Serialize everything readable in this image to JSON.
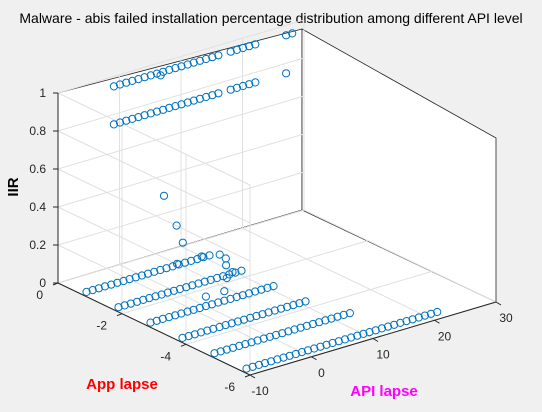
{
  "chart_data": {
    "type": "scatter",
    "title": "Malware - abis failed installation percentage distribution among different API level",
    "xlabel": "API lapse",
    "ylabel": "App lapse",
    "zlabel": "IIR",
    "xlim": [
      -10,
      30
    ],
    "ylim": [
      -6,
      0
    ],
    "zlim": [
      0,
      1
    ],
    "xticks": [
      "-10",
      "0",
      "10",
      "20",
      "30"
    ],
    "yticks": [
      "-6",
      "-4",
      "-2",
      "0"
    ],
    "zticks": [
      "0",
      "0.2",
      "0.4",
      "0.6",
      "0.8",
      "1"
    ],
    "grid": true,
    "colors": {
      "marker": "#0072bd",
      "xlabel": "#ff00ff",
      "ylabel": "#ff0000",
      "zlabel": "#000000",
      "background": "#f0f0f0",
      "plot_area": "#ffffff"
    },
    "series": [
      {
        "points": [
          {
            "x": -9,
            "y": -5.7,
            "z": 0
          },
          {
            "x": -8,
            "y": -5.7,
            "z": 0
          },
          {
            "x": -7,
            "y": -5.7,
            "z": 0
          },
          {
            "x": -6,
            "y": -5.7,
            "z": 0
          },
          {
            "x": -5,
            "y": -5.7,
            "z": 0
          },
          {
            "x": -4,
            "y": -5.7,
            "z": 0
          },
          {
            "x": -3,
            "y": -5.7,
            "z": 0
          },
          {
            "x": -2,
            "y": -5.7,
            "z": 0
          },
          {
            "x": -1,
            "y": -5.7,
            "z": 0
          },
          {
            "x": 0,
            "y": -5.7,
            "z": 0
          },
          {
            "x": 1,
            "y": -5.7,
            "z": 0
          },
          {
            "x": 2,
            "y": -5.7,
            "z": 0
          },
          {
            "x": 3,
            "y": -5.7,
            "z": 0
          },
          {
            "x": 4,
            "y": -5.7,
            "z": 0
          },
          {
            "x": 5,
            "y": -5.7,
            "z": 0
          },
          {
            "x": 6,
            "y": -5.7,
            "z": 0
          },
          {
            "x": 7,
            "y": -5.7,
            "z": 0
          },
          {
            "x": 8,
            "y": -5.7,
            "z": 0
          },
          {
            "x": 9,
            "y": -5.7,
            "z": 0
          },
          {
            "x": 10,
            "y": -5.7,
            "z": 0
          },
          {
            "x": 11,
            "y": -5.7,
            "z": 0
          },
          {
            "x": 12,
            "y": -5.7,
            "z": 0
          },
          {
            "x": 13,
            "y": -5.7,
            "z": 0
          },
          {
            "x": 14,
            "y": -5.7,
            "z": 0
          },
          {
            "x": 15,
            "y": -5.7,
            "z": 0
          },
          {
            "x": 16,
            "y": -5.7,
            "z": 0
          },
          {
            "x": 17,
            "y": -5.7,
            "z": 0
          },
          {
            "x": 18,
            "y": -5.7,
            "z": 0
          },
          {
            "x": 19,
            "y": -5.7,
            "z": 0
          },
          {
            "x": 20,
            "y": -5.7,
            "z": 0
          },
          {
            "x": 21,
            "y": -5.7,
            "z": 0
          },
          {
            "x": 22,
            "y": -5.7,
            "z": 0
          },
          {
            "x": -9,
            "y": -4.7,
            "z": 0
          },
          {
            "x": -8,
            "y": -4.7,
            "z": 0
          },
          {
            "x": -7,
            "y": -4.7,
            "z": 0
          },
          {
            "x": -6,
            "y": -4.7,
            "z": 0
          },
          {
            "x": -5,
            "y": -4.7,
            "z": 0
          },
          {
            "x": -4,
            "y": -4.7,
            "z": 0
          },
          {
            "x": -3,
            "y": -4.7,
            "z": 0
          },
          {
            "x": -2,
            "y": -4.7,
            "z": 0
          },
          {
            "x": -1,
            "y": -4.7,
            "z": 0
          },
          {
            "x": 0,
            "y": -4.7,
            "z": 0
          },
          {
            "x": 1,
            "y": -4.7,
            "z": 0
          },
          {
            "x": 2,
            "y": -4.7,
            "z": 0
          },
          {
            "x": 3,
            "y": -4.7,
            "z": 0
          },
          {
            "x": 4,
            "y": -4.7,
            "z": 0
          },
          {
            "x": 5,
            "y": -4.7,
            "z": 0
          },
          {
            "x": 6,
            "y": -4.7,
            "z": 0
          },
          {
            "x": 7,
            "y": -4.7,
            "z": 0
          },
          {
            "x": 8,
            "y": -4.7,
            "z": 0
          },
          {
            "x": 9,
            "y": -4.7,
            "z": 0
          },
          {
            "x": 10,
            "y": -4.7,
            "z": 0
          },
          {
            "x": 11,
            "y": -4.7,
            "z": 0
          },
          {
            "x": 12,
            "y": -4.7,
            "z": 0
          },
          {
            "x": 13,
            "y": -4.7,
            "z": 0
          },
          {
            "x": -9,
            "y": -3.7,
            "z": 0
          },
          {
            "x": -8,
            "y": -3.7,
            "z": 0
          },
          {
            "x": -7,
            "y": -3.7,
            "z": 0
          },
          {
            "x": -6,
            "y": -3.7,
            "z": 0
          },
          {
            "x": -5,
            "y": -3.7,
            "z": 0
          },
          {
            "x": -4,
            "y": -3.7,
            "z": 0
          },
          {
            "x": -3,
            "y": -3.7,
            "z": 0
          },
          {
            "x": -2,
            "y": -3.7,
            "z": 0
          },
          {
            "x": -1,
            "y": -3.7,
            "z": 0
          },
          {
            "x": 0,
            "y": -3.7,
            "z": 0
          },
          {
            "x": 1,
            "y": -3.7,
            "z": 0
          },
          {
            "x": 2,
            "y": -3.7,
            "z": 0
          },
          {
            "x": 3,
            "y": -3.7,
            "z": 0
          },
          {
            "x": 4,
            "y": -3.7,
            "z": 0
          },
          {
            "x": 5,
            "y": -3.7,
            "z": 0
          },
          {
            "x": 6,
            "y": -3.7,
            "z": 0
          },
          {
            "x": 7,
            "y": -3.7,
            "z": 0
          },
          {
            "x": 8,
            "y": -3.7,
            "z": 0
          },
          {
            "x": 9,
            "y": -3.7,
            "z": 0
          },
          {
            "x": 10,
            "y": -3.7,
            "z": 0
          },
          {
            "x": 11,
            "y": -3.7,
            "z": 0
          },
          {
            "x": -9,
            "y": -2.7,
            "z": 0
          },
          {
            "x": -8,
            "y": -2.7,
            "z": 0
          },
          {
            "x": -7,
            "y": -2.7,
            "z": 0
          },
          {
            "x": -6,
            "y": -2.7,
            "z": 0
          },
          {
            "x": -5,
            "y": -2.7,
            "z": 0
          },
          {
            "x": -4,
            "y": -2.7,
            "z": 0
          },
          {
            "x": -3,
            "y": -2.7,
            "z": 0
          },
          {
            "x": -2,
            "y": -2.7,
            "z": 0
          },
          {
            "x": -1,
            "y": -2.7,
            "z": 0
          },
          {
            "x": 0,
            "y": -2.7,
            "z": 0
          },
          {
            "x": 1,
            "y": -2.7,
            "z": 0
          },
          {
            "x": 2,
            "y": -2.7,
            "z": 0
          },
          {
            "x": 3,
            "y": -2.7,
            "z": 0
          },
          {
            "x": 4,
            "y": -2.7,
            "z": 0
          },
          {
            "x": 5,
            "y": -2.7,
            "z": 0
          },
          {
            "x": 6,
            "y": -2.7,
            "z": 0
          },
          {
            "x": 7,
            "y": -2.7,
            "z": 0
          },
          {
            "x": 8,
            "y": -2.7,
            "z": 0
          },
          {
            "x": 9,
            "y": -2.7,
            "z": 0
          },
          {
            "x": 10,
            "y": -2.7,
            "z": 0
          },
          {
            "x": 11,
            "y": -2.7,
            "z": 0
          },
          {
            "x": -9,
            "y": -1.7,
            "z": 0
          },
          {
            "x": -8,
            "y": -1.7,
            "z": 0
          },
          {
            "x": -7,
            "y": -1.7,
            "z": 0
          },
          {
            "x": -6,
            "y": -1.7,
            "z": 0
          },
          {
            "x": -5,
            "y": -1.7,
            "z": 0
          },
          {
            "x": -4,
            "y": -1.7,
            "z": 0
          },
          {
            "x": -3,
            "y": -1.7,
            "z": 0
          },
          {
            "x": -2,
            "y": -1.7,
            "z": 0
          },
          {
            "x": -1,
            "y": -1.7,
            "z": 0
          },
          {
            "x": 0,
            "y": -1.7,
            "z": 0
          },
          {
            "x": 1,
            "y": -1.7,
            "z": 0
          },
          {
            "x": 2,
            "y": -1.7,
            "z": 0
          },
          {
            "x": 3,
            "y": -1.7,
            "z": 0
          },
          {
            "x": 4,
            "y": -1.7,
            "z": 0
          },
          {
            "x": 5,
            "y": -1.7,
            "z": 0
          },
          {
            "x": 6,
            "y": -1.7,
            "z": 0
          },
          {
            "x": 7,
            "y": -1.7,
            "z": 0
          },
          {
            "x": 8,
            "y": -1.7,
            "z": 0
          },
          {
            "x": 9,
            "y": -1.7,
            "z": 0
          },
          {
            "x": 10,
            "y": -1.7,
            "z": 0
          },
          {
            "x": 11,
            "y": -1.7,
            "z": 0
          },
          {
            "x": -9,
            "y": -0.7,
            "z": 0
          },
          {
            "x": -8,
            "y": -0.7,
            "z": 0
          },
          {
            "x": -7,
            "y": -0.7,
            "z": 0
          },
          {
            "x": -6,
            "y": -0.7,
            "z": 0
          },
          {
            "x": -5,
            "y": -0.7,
            "z": 0
          },
          {
            "x": -4,
            "y": -0.7,
            "z": 0
          },
          {
            "x": -3,
            "y": -0.7,
            "z": 0
          },
          {
            "x": -2,
            "y": -0.7,
            "z": 0
          },
          {
            "x": -1,
            "y": -0.7,
            "z": 0
          },
          {
            "x": 0,
            "y": -0.7,
            "z": 0
          },
          {
            "x": 1,
            "y": -0.7,
            "z": 0
          },
          {
            "x": 2,
            "y": -0.7,
            "z": 0
          },
          {
            "x": 3,
            "y": -0.7,
            "z": 0
          },
          {
            "x": 4,
            "y": -0.7,
            "z": 0
          },
          {
            "x": 5,
            "y": -0.7,
            "z": 0
          },
          {
            "x": 6,
            "y": -0.7,
            "z": 0
          },
          {
            "x": 7,
            "y": -0.7,
            "z": 0
          },
          {
            "x": 8,
            "y": -0.7,
            "z": 0
          },
          {
            "x": 9,
            "y": -0.7,
            "z": 0
          },
          {
            "x": 10,
            "y": -0.7,
            "z": 0
          },
          {
            "x": 11,
            "y": -0.7,
            "z": 0
          },
          {
            "x": 1,
            "y": -1.2,
            "z": 0.45
          },
          {
            "x": 2,
            "y": -1.4,
            "z": 0.3
          },
          {
            "x": 3,
            "y": -1.4,
            "z": 0.2
          },
          {
            "x": 4,
            "y": -1.8,
            "z": 0.15
          },
          {
            "x": 6,
            "y": -2.2,
            "z": 0.05
          },
          {
            "x": 0,
            "y": -1.8,
            "z": 0.15
          },
          {
            "x": 10,
            "y": -1.4,
            "z": 0.05
          },
          {
            "x": 9,
            "y": -1.4,
            "z": 0.08
          },
          {
            "x": 9,
            "y": -1.6,
            "z": 0.04
          },
          {
            "x": 9,
            "y": -1.8,
            "z": 0.02
          },
          {
            "x": 0,
            "y": -2.7,
            "z": 0.05
          },
          {
            "x": 3,
            "y": -2.7,
            "z": 0.05
          },
          {
            "x": -3,
            "y": -0.4,
            "z": 0.8
          },
          {
            "x": -2,
            "y": -0.4,
            "z": 0.8
          },
          {
            "x": -1,
            "y": -0.4,
            "z": 0.8
          },
          {
            "x": 0,
            "y": -0.4,
            "z": 0.8
          },
          {
            "x": 1,
            "y": -0.4,
            "z": 0.8
          },
          {
            "x": 2,
            "y": -0.4,
            "z": 0.8
          },
          {
            "x": 3,
            "y": -0.4,
            "z": 0.8
          },
          {
            "x": 4,
            "y": -0.4,
            "z": 0.8
          },
          {
            "x": 5,
            "y": -0.4,
            "z": 0.8
          },
          {
            "x": 6,
            "y": -0.4,
            "z": 0.8
          },
          {
            "x": 7,
            "y": -0.4,
            "z": 0.8
          },
          {
            "x": 8,
            "y": -0.4,
            "z": 0.8
          },
          {
            "x": 9,
            "y": -0.4,
            "z": 0.8
          },
          {
            "x": 10,
            "y": -0.4,
            "z": 0.8
          },
          {
            "x": 11,
            "y": -0.4,
            "z": 0.8
          },
          {
            "x": 12,
            "y": -0.4,
            "z": 0.8
          },
          {
            "x": 13,
            "y": -0.4,
            "z": 0.8
          },
          {
            "x": 14,
            "y": -0.4,
            "z": 0.8
          },
          {
            "x": 16,
            "y": -0.4,
            "z": 0.8
          },
          {
            "x": 17,
            "y": -0.4,
            "z": 0.8
          },
          {
            "x": 18,
            "y": -0.4,
            "z": 0.8
          },
          {
            "x": 19,
            "y": -0.4,
            "z": 0.8
          },
          {
            "x": 20,
            "y": -0.4,
            "z": 0.8
          },
          {
            "x": 25,
            "y": -0.4,
            "z": 0.8
          },
          {
            "x": -3,
            "y": -0.4,
            "z": 1
          },
          {
            "x": -2,
            "y": -0.4,
            "z": 1
          },
          {
            "x": -1,
            "y": -0.4,
            "z": 1
          },
          {
            "x": 0,
            "y": -0.4,
            "z": 1
          },
          {
            "x": 1,
            "y": -0.4,
            "z": 1
          },
          {
            "x": 2,
            "y": -0.4,
            "z": 1
          },
          {
            "x": 3,
            "y": -0.4,
            "z": 1
          },
          {
            "x": 4,
            "y": -0.4,
            "z": 1
          },
          {
            "x": 5,
            "y": -0.4,
            "z": 1
          },
          {
            "x": 6,
            "y": -0.4,
            "z": 1
          },
          {
            "x": 7,
            "y": -0.4,
            "z": 1
          },
          {
            "x": 8,
            "y": -0.4,
            "z": 1
          },
          {
            "x": 9,
            "y": -0.4,
            "z": 1
          },
          {
            "x": 10,
            "y": -0.4,
            "z": 1
          },
          {
            "x": 11,
            "y": -0.4,
            "z": 1
          },
          {
            "x": 12,
            "y": -0.4,
            "z": 1
          },
          {
            "x": 13,
            "y": -0.4,
            "z": 1
          },
          {
            "x": 14,
            "y": -0.4,
            "z": 1
          },
          {
            "x": 16,
            "y": -0.4,
            "z": 1
          },
          {
            "x": 17,
            "y": -0.4,
            "z": 1
          },
          {
            "x": 18,
            "y": -0.4,
            "z": 1
          },
          {
            "x": 19,
            "y": -0.4,
            "z": 1
          },
          {
            "x": 20,
            "y": -0.4,
            "z": 1
          },
          {
            "x": 25,
            "y": -0.4,
            "z": 1
          },
          {
            "x": 26,
            "y": -0.4,
            "z": 1
          },
          {
            "x": 2,
            "y": -0.9,
            "z": 1.05
          }
        ]
      }
    ]
  }
}
